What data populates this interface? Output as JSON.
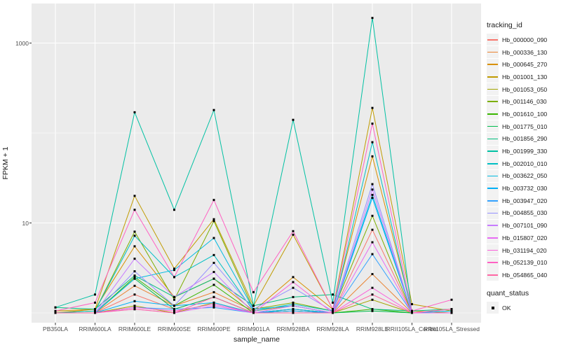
{
  "chart_data": {
    "type": "line",
    "title": "",
    "xlabel": "sample_name",
    "ylabel": "FPKM + 1",
    "y_scale": "log10",
    "ylim": [
      1,
      2000
    ],
    "grid": true,
    "panel_background": "#EBEBEB",
    "gridline_color": "#FFFFFF",
    "y_ticks": [
      {
        "value": 10,
        "label": "10"
      },
      {
        "value": 1000,
        "label": "1000"
      }
    ],
    "y_minor_gridlines": [
      1,
      100
    ],
    "legend_position": "right",
    "legend_title": "tracking_id",
    "point_marker": "small-black-square",
    "quant_legend": {
      "title": "quant_status",
      "items": [
        {
          "label": "OK",
          "marker": "small-black-square"
        }
      ]
    },
    "categories": [
      "PB350LA",
      "RRIM600LA",
      "RRIM600LE",
      "RRIM600SE",
      "RRIM600PE",
      "RRIM901LA",
      "RRIM928BA",
      "RRIM928LA",
      "RRIM928LE",
      "RRII105LA_Control",
      "RRII105LA_Stressed"
    ],
    "series": [
      {
        "name": "Hb_000000_090",
        "color": "#F8766D",
        "values": [
          1.0,
          1.0,
          1.6,
          1.1,
          1.5,
          1.0,
          1.1,
          1.0,
          8.4,
          1.0,
          1.0
        ]
      },
      {
        "name": "Hb_000336_130",
        "color": "#EA8331",
        "values": [
          1.0,
          1.0,
          2.0,
          1.2,
          1.7,
          1.05,
          1.2,
          1.0,
          2.7,
          1.0,
          1.0
        ]
      },
      {
        "name": "Hb_000645_270",
        "color": "#D89000",
        "values": [
          1.0,
          1.1,
          5.5,
          1.5,
          2.4,
          1.05,
          2.5,
          1.1,
          55,
          1.05,
          1.0
        ]
      },
      {
        "name": "Hb_001001_130",
        "color": "#C09B00",
        "values": [
          1.05,
          1.1,
          20,
          3.1,
          11,
          1.2,
          7.4,
          1.1,
          190,
          1.25,
          1.05
        ]
      },
      {
        "name": "Hb_001053_050",
        "color": "#A3A500",
        "values": [
          1.0,
          1.0,
          1.2,
          1.0,
          1.3,
          1.0,
          1.05,
          1.0,
          1.4,
          1.0,
          1.0
        ]
      },
      {
        "name": "Hb_001146_030",
        "color": "#7CAE00",
        "values": [
          1.0,
          1.05,
          8.0,
          1.4,
          10.5,
          1.1,
          1.3,
          1.05,
          12,
          1.0,
          1.0
        ]
      },
      {
        "name": "Hb_001610_100",
        "color": "#39B600",
        "values": [
          1.0,
          1.0,
          2.5,
          1.2,
          2.05,
          1.0,
          1.1,
          1.0,
          1.1,
          1.0,
          1.0
        ]
      },
      {
        "name": "Hb_001775_010",
        "color": "#00BB4E",
        "values": [
          1.0,
          1.0,
          2.4,
          1.1,
          1.5,
          1.0,
          1.05,
          1.0,
          1.05,
          1.0,
          1.0
        ]
      },
      {
        "name": "Hb_001856_290",
        "color": "#00BF7D",
        "values": [
          1.15,
          1.1,
          2.6,
          1.5,
          2.4,
          1.2,
          1.5,
          1.6,
          1.1,
          1.05,
          1.1
        ]
      },
      {
        "name": "Hb_001999_330",
        "color": "#00C1A3",
        "values": [
          1.15,
          1.6,
          170,
          14,
          180,
          1.2,
          140,
          1.3,
          1900,
          1.0,
          1.0
        ]
      },
      {
        "name": "Hb_002010_010",
        "color": "#00BFC4",
        "values": [
          1.0,
          1.05,
          7.2,
          2.5,
          4.4,
          1.05,
          1.25,
          1.05,
          79,
          1.0,
          1.05
        ]
      },
      {
        "name": "Hb_003622_050",
        "color": "#00BAE0",
        "values": [
          1.0,
          1.0,
          2.4,
          3.0,
          6.8,
          1.1,
          1.2,
          1.0,
          20.5,
          1.0,
          1.05
        ]
      },
      {
        "name": "Hb_003732_030",
        "color": "#00B0F6",
        "values": [
          1.0,
          1.0,
          1.35,
          1.2,
          1.3,
          1.0,
          1.1,
          1.0,
          19,
          1.0,
          1.0
        ]
      },
      {
        "name": "Hb_003947_020",
        "color": "#35A2FF",
        "values": [
          1.0,
          1.0,
          1.15,
          1.1,
          1.15,
          1.0,
          1.05,
          1.0,
          4.5,
          1.0,
          1.0
        ]
      },
      {
        "name": "Hb_004855_030",
        "color": "#9590FF",
        "values": [
          1.0,
          1.0,
          2.9,
          1.2,
          3.6,
          1.1,
          1.9,
          1.05,
          27,
          1.0,
          1.0
        ]
      },
      {
        "name": "Hb_007101_090",
        "color": "#C77CFF",
        "values": [
          1.0,
          1.0,
          4.0,
          1.5,
          2.85,
          1.0,
          1.2,
          1.0,
          23.5,
          1.0,
          1.0
        ]
      },
      {
        "name": "Hb_015807_020",
        "color": "#E76BF3",
        "values": [
          1.0,
          1.0,
          1.1,
          1.0,
          1.2,
          1.0,
          1.0,
          1.0,
          6.1,
          1.0,
          1.0
        ]
      },
      {
        "name": "Hb_031194_020",
        "color": "#FA62DB",
        "values": [
          1.0,
          1.0,
          1.15,
          1.05,
          1.25,
          1.0,
          2.2,
          1.0,
          1.9,
          1.0,
          1.1
        ]
      },
      {
        "name": "Hb_052139_010",
        "color": "#FF61C3",
        "values": [
          1.05,
          1.3,
          14,
          2.5,
          18,
          1.7,
          8.1,
          1.1,
          127,
          1.05,
          1.4
        ]
      },
      {
        "name": "Hb_054865_040",
        "color": "#FF67A4",
        "values": [
          1.0,
          1.0,
          1.1,
          1.0,
          1.5,
          1.0,
          1.0,
          1.0,
          1.6,
          1.0,
          1.1
        ]
      }
    ]
  }
}
